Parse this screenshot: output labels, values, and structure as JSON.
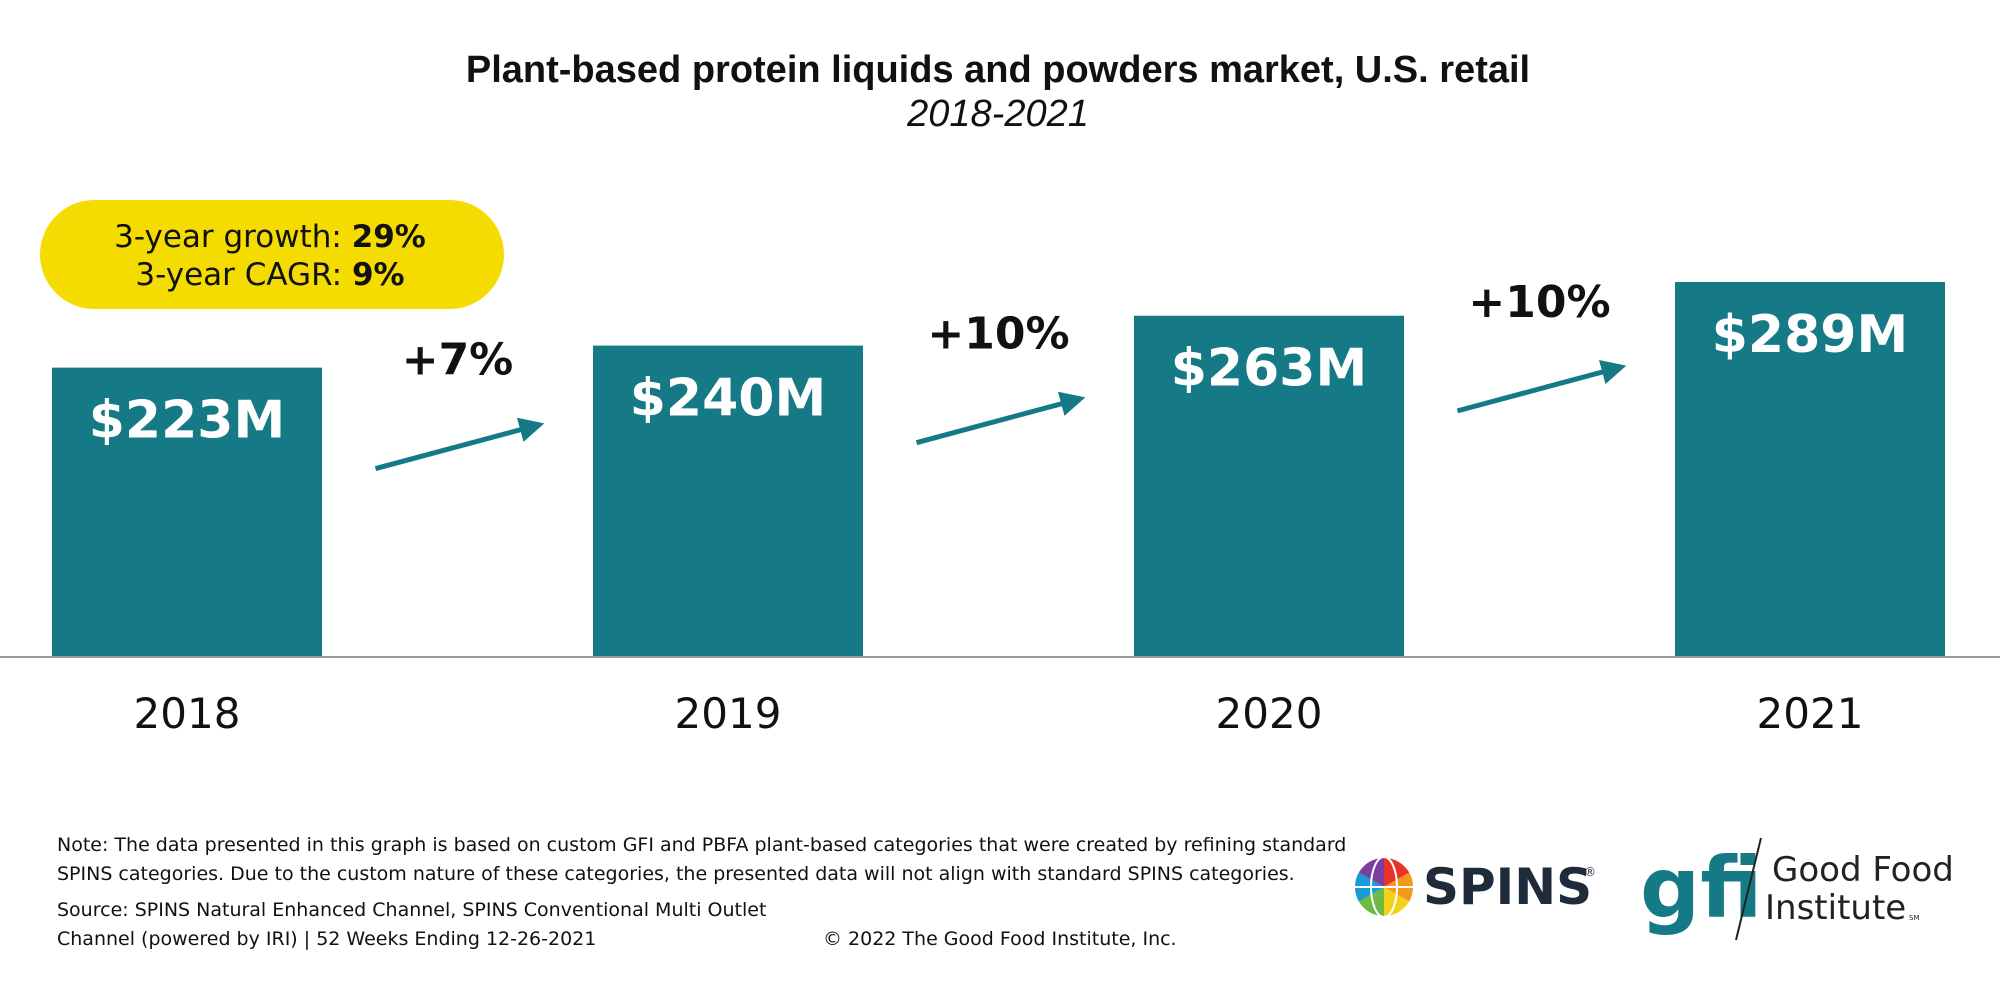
{
  "colors": {
    "bar": "#157a86",
    "arrow": "#157a86",
    "callout_bg": "#f5dc00",
    "axis": "#9a9a9a",
    "gfi_teal": "#157a86",
    "spins_text": "#1f2b3a"
  },
  "chart_data": {
    "type": "bar",
    "title": "Plant-based protein liquids and powders market, U.S. retail",
    "subtitle": "2018-2021",
    "categories": [
      "2018",
      "2019",
      "2020",
      "2021"
    ],
    "values": [
      223,
      240,
      263,
      289
    ],
    "value_labels": [
      "$223M",
      "$240M",
      "$263M",
      "$289M"
    ],
    "unit": "$M",
    "growth": [
      {
        "from": "2018",
        "to": "2019",
        "label": "+7%"
      },
      {
        "from": "2019",
        "to": "2020",
        "label": "+10%"
      },
      {
        "from": "2020",
        "to": "2021",
        "label": "+10%"
      }
    ],
    "callout": {
      "line1_label": "3-year growth: ",
      "line1_value": "29%",
      "line2_label": "3-year CAGR: ",
      "line2_value": "9%"
    },
    "grid": false,
    "legend": "none"
  },
  "footer": {
    "note": "Note: The data presented in this graph is based on custom GFI and PBFA plant-based categories that were created by refining standard SPINS categories. Due to the custom nature of these categories, the presented data will not align with standard SPINS categories.",
    "source": "Source: SPINS Natural Enhanced Channel, SPINS Conventional Multi Outlet Channel (powered by IRI) | 52 Weeks Ending 12-26-2021",
    "copyright": "© 2022 The Good Food Institute, Inc."
  },
  "logos": {
    "spins": "SPINS",
    "spins_mark": "®",
    "gfi_mark": "gfi",
    "gfi_line1": "Good Food",
    "gfi_line2": "Institute",
    "gfi_sm": "SM"
  }
}
